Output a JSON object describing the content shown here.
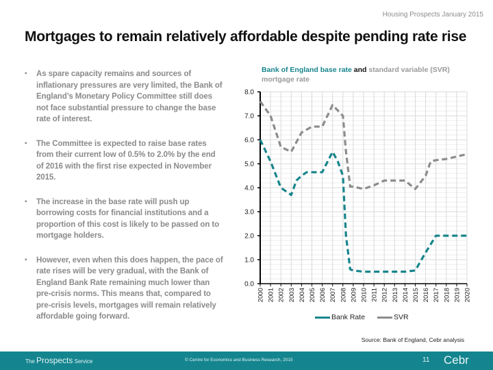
{
  "header": {
    "tag": "Housing Prospects January 2015"
  },
  "title": "Mortgages to remain relatively affordable despite pending rate rise",
  "bullets": [
    "As spare capacity remains and sources of inflationary pressures are very limited, the Bank of England’s Monetary Policy Committee still does not face substantial pressure to change the base rate of interest.",
    "The Committee is expected to raise base rates from their current low of 0.5% to 2.0% by the end of 2016 with the first rise expected in November 2015.",
    "The increase in the base rate will push up borrowing costs for financial institutions and a proportion of this cost is likely to be passed on to mortgage holders.",
    "However, even when this does happen, the pace of rate rises will be very gradual, with the Bank of England Bank Rate remaining much lower than pre-crisis norms. This means that, compared to pre-crisis levels, mortgages will remain relatively affordable going forward."
  ],
  "bullet_icon": "square-bullet-icon",
  "chart_title": {
    "part1": "Bank of England base rate",
    "part2": "and",
    "part3": "standard variable (SVR) mortgage rate"
  },
  "source": "Source: Bank of England, Cebr analysis",
  "footer": {
    "brand_prefix": "The",
    "brand_main": "Prospects",
    "brand_suffix": "Service",
    "copyright": "© Centre for Economics and Business Research, 2015",
    "page_number": "11",
    "logo": "Cebr"
  },
  "colors": {
    "bank_rate": "#18858c",
    "svr": "#8c8c8c",
    "footer_bg": "#14858f",
    "grid": "#d9d9d9"
  },
  "chart_data": {
    "type": "line",
    "title": "Bank of England base rate and standard variable (SVR) mortgage rate",
    "xlabel": "",
    "ylabel": "",
    "x": [
      "2000",
      "2001",
      "2002",
      "2003",
      "2004",
      "2005",
      "2006",
      "2007",
      "2008",
      "2009",
      "2010",
      "2011",
      "2012",
      "2013",
      "2014",
      "2015",
      "2016",
      "2017",
      "2018",
      "2019",
      "2020"
    ],
    "ylim": [
      0,
      8
    ],
    "yticks": [
      "0.0",
      "1.0",
      "2.0",
      "3.0",
      "4.0",
      "5.0",
      "6.0",
      "7.0",
      "8.0"
    ],
    "grid": true,
    "legend": "bottom",
    "line_style": "dashed",
    "series": [
      {
        "name": "Bank Rate",
        "points": [
          [
            2000,
            6.0
          ],
          [
            2001,
            5.1
          ],
          [
            2002,
            4.0
          ],
          [
            2003,
            3.7
          ],
          [
            2003.5,
            4.3
          ],
          [
            2004,
            4.5
          ],
          [
            2004.5,
            4.65
          ],
          [
            2005,
            4.65
          ],
          [
            2006,
            4.65
          ],
          [
            2007,
            5.5
          ],
          [
            2007.5,
            5.1
          ],
          [
            2008,
            4.5
          ],
          [
            2008.3,
            2.0
          ],
          [
            2008.7,
            0.6
          ],
          [
            2009,
            0.55
          ],
          [
            2010,
            0.5
          ],
          [
            2011,
            0.5
          ],
          [
            2012,
            0.5
          ],
          [
            2013,
            0.5
          ],
          [
            2014,
            0.5
          ],
          [
            2015,
            0.55
          ],
          [
            2016,
            1.3
          ],
          [
            2017,
            2.0
          ],
          [
            2018,
            2.0
          ],
          [
            2019,
            2.0
          ],
          [
            2020,
            2.0
          ]
        ]
      },
      {
        "name": "SVR",
        "points": [
          [
            2000,
            7.6
          ],
          [
            2001,
            7.0
          ],
          [
            2002,
            5.7
          ],
          [
            2003,
            5.5
          ],
          [
            2004,
            6.3
          ],
          [
            2005,
            6.55
          ],
          [
            2006,
            6.55
          ],
          [
            2007,
            7.45
          ],
          [
            2008,
            7.0
          ],
          [
            2008.3,
            5.5
          ],
          [
            2008.7,
            4.05
          ],
          [
            2009,
            4.05
          ],
          [
            2010,
            3.95
          ],
          [
            2011,
            4.1
          ],
          [
            2012,
            4.3
          ],
          [
            2013,
            4.3
          ],
          [
            2014,
            4.3
          ],
          [
            2015,
            3.95
          ],
          [
            2016,
            4.5
          ],
          [
            2016.5,
            5.1
          ],
          [
            2017,
            5.15
          ],
          [
            2018,
            5.2
          ],
          [
            2019,
            5.3
          ],
          [
            2020,
            5.4
          ]
        ]
      }
    ]
  }
}
